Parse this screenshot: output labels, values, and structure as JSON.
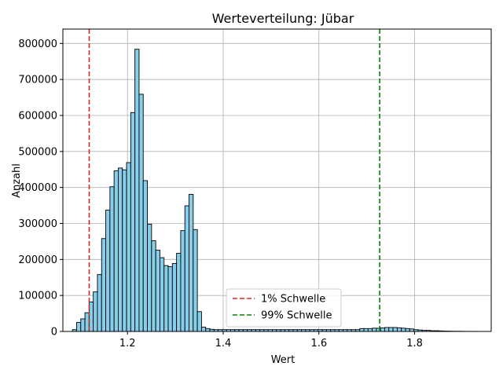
{
  "chart_data": {
    "type": "histogram",
    "title": "Werteverteilung: Jübar",
    "xlabel": "Wert",
    "ylabel": "Anzahl",
    "xlim": [
      1.065,
      1.96
    ],
    "ylim": [
      0,
      840000
    ],
    "xticks": [
      1.2,
      1.4,
      1.6,
      1.8
    ],
    "xtick_labels": [
      "1.2",
      "1.4",
      "1.6",
      "1.8"
    ],
    "yticks": [
      0,
      100000,
      200000,
      300000,
      400000,
      500000,
      600000,
      700000,
      800000
    ],
    "ytick_labels": [
      "0",
      "100000",
      "200000",
      "300000",
      "400000",
      "500000",
      "600000",
      "700000",
      "800000"
    ],
    "grid": true,
    "bar_color": "#87ceeb",
    "bar_edge_color": "#000000",
    "bin_start": 1.085,
    "bin_width": 0.0087,
    "counts": [
      5000,
      25000,
      35000,
      52000,
      82000,
      110000,
      158000,
      258000,
      337000,
      402000,
      446000,
      454000,
      449000,
      469000,
      608000,
      784000,
      659000,
      419000,
      298000,
      252000,
      226000,
      205000,
      183000,
      180000,
      189000,
      217000,
      280000,
      349000,
      381000,
      283000,
      55000,
      12000,
      8000,
      6000,
      5000,
      5000,
      5000,
      5000,
      5000,
      5000,
      5000,
      5000,
      5000,
      5000,
      5000,
      5000,
      5000,
      5000,
      5000,
      5000,
      5000,
      5000,
      5000,
      5000,
      5000,
      5000,
      5000,
      5000,
      5000,
      5000,
      5000,
      5000,
      5000,
      5000,
      5000,
      5000,
      5000,
      5000,
      5000,
      8000,
      8000,
      8000,
      9000,
      9000,
      10000,
      11000,
      11000,
      11000,
      10000,
      9000,
      8000,
      7000,
      5000,
      4000,
      3000,
      3000,
      2000,
      2000,
      1500,
      1000,
      800,
      600,
      500,
      400,
      300,
      200,
      150,
      100
    ],
    "vlines": [
      {
        "x": 1.12,
        "color": "#d62728",
        "style": "dashed",
        "label": "1% Schwelle"
      },
      {
        "x": 1.727,
        "color": "#008000",
        "style": "dashed",
        "label": "99% Schwelle"
      }
    ],
    "legend": {
      "position": "lower-center",
      "entries": [
        "1% Schwelle",
        "99% Schwelle"
      ]
    }
  }
}
